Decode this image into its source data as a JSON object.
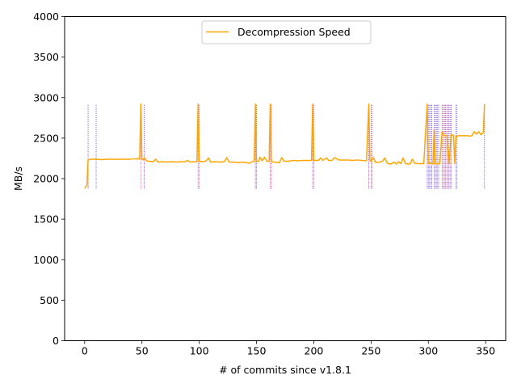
{
  "chart_data": {
    "type": "line",
    "title": "",
    "xlabel": "# of commits since v1.8.1",
    "ylabel": "MB/s",
    "xlim": [
      -17.5,
      367.5
    ],
    "ylim": [
      0,
      4000
    ],
    "xticks": [
      0,
      50,
      100,
      150,
      200,
      250,
      300,
      350
    ],
    "yticks": [
      0,
      500,
      1000,
      1500,
      2000,
      2500,
      3000,
      3500,
      4000
    ],
    "grid": false,
    "legend": "top-center",
    "colors": {
      "series": "#ffa500",
      "markers": [
        "#6a0dad",
        "#3b2fd6",
        "#c0306a"
      ]
    },
    "series": [
      {
        "name": "Decompression Speed",
        "color": "#ffa500",
        "points": [
          [
            0,
            1880
          ],
          [
            1,
            1900
          ],
          [
            2,
            1920
          ],
          [
            3,
            2230
          ],
          [
            5,
            2240
          ],
          [
            10,
            2240
          ],
          [
            15,
            2235
          ],
          [
            20,
            2240
          ],
          [
            25,
            2240
          ],
          [
            30,
            2238
          ],
          [
            35,
            2240
          ],
          [
            40,
            2240
          ],
          [
            43,
            2245
          ],
          [
            45,
            2240
          ],
          [
            47,
            2250
          ],
          [
            48,
            2240
          ],
          [
            49,
            2920
          ],
          [
            50,
            2240
          ],
          [
            51,
            2230
          ],
          [
            52,
            2260
          ],
          [
            54,
            2220
          ],
          [
            56,
            2215
          ],
          [
            60,
            2210
          ],
          [
            62,
            2240
          ],
          [
            64,
            2205
          ],
          [
            68,
            2210
          ],
          [
            72,
            2205
          ],
          [
            76,
            2210
          ],
          [
            80,
            2205
          ],
          [
            84,
            2210
          ],
          [
            88,
            2210
          ],
          [
            90,
            2225
          ],
          [
            92,
            2205
          ],
          [
            96,
            2210
          ],
          [
            98,
            2210
          ],
          [
            99,
            2920
          ],
          [
            100,
            2215
          ],
          [
            104,
            2210
          ],
          [
            106,
            2220
          ],
          [
            108,
            2255
          ],
          [
            110,
            2205
          ],
          [
            114,
            2210
          ],
          [
            118,
            2205
          ],
          [
            122,
            2210
          ],
          [
            124,
            2260
          ],
          [
            126,
            2205
          ],
          [
            130,
            2205
          ],
          [
            134,
            2200
          ],
          [
            138,
            2205
          ],
          [
            142,
            2195
          ],
          [
            144,
            2190
          ],
          [
            146,
            2210
          ],
          [
            148,
            2215
          ],
          [
            149,
            2920
          ],
          [
            150,
            2210
          ],
          [
            152,
            2215
          ],
          [
            153,
            2265
          ],
          [
            155,
            2220
          ],
          [
            157,
            2265
          ],
          [
            159,
            2215
          ],
          [
            161,
            2215
          ],
          [
            162,
            2920
          ],
          [
            163,
            2210
          ],
          [
            166,
            2205
          ],
          [
            170,
            2195
          ],
          [
            172,
            2260
          ],
          [
            174,
            2215
          ],
          [
            178,
            2215
          ],
          [
            182,
            2225
          ],
          [
            186,
            2220
          ],
          [
            190,
            2225
          ],
          [
            194,
            2225
          ],
          [
            198,
            2225
          ],
          [
            199,
            2920
          ],
          [
            200,
            2225
          ],
          [
            204,
            2225
          ],
          [
            206,
            2255
          ],
          [
            208,
            2225
          ],
          [
            211,
            2255
          ],
          [
            213,
            2225
          ],
          [
            216,
            2225
          ],
          [
            218,
            2260
          ],
          [
            220,
            2245
          ],
          [
            222,
            2230
          ],
          [
            226,
            2230
          ],
          [
            230,
            2230
          ],
          [
            234,
            2225
          ],
          [
            238,
            2230
          ],
          [
            242,
            2225
          ],
          [
            246,
            2220
          ],
          [
            248,
            2920
          ],
          [
            249,
            2220
          ],
          [
            250,
            2210
          ],
          [
            252,
            2260
          ],
          [
            254,
            2200
          ],
          [
            258,
            2205
          ],
          [
            260,
            2215
          ],
          [
            262,
            2255
          ],
          [
            264,
            2195
          ],
          [
            266,
            2180
          ],
          [
            268,
            2185
          ],
          [
            270,
            2205
          ],
          [
            272,
            2180
          ],
          [
            274,
            2210
          ],
          [
            276,
            2185
          ],
          [
            278,
            2255
          ],
          [
            280,
            2185
          ],
          [
            284,
            2180
          ],
          [
            286,
            2240
          ],
          [
            288,
            2190
          ],
          [
            292,
            2185
          ],
          [
            296,
            2185
          ],
          [
            299,
            2920
          ],
          [
            300,
            2185
          ],
          [
            302,
            2190
          ],
          [
            304,
            2180
          ],
          [
            305,
            2600
          ],
          [
            306,
            2185
          ],
          [
            308,
            2180
          ],
          [
            310,
            2185
          ],
          [
            312,
            2580
          ],
          [
            314,
            2530
          ],
          [
            316,
            2535
          ],
          [
            318,
            2180
          ],
          [
            320,
            2540
          ],
          [
            322,
            2535
          ],
          [
            323,
            2190
          ],
          [
            324,
            2520
          ],
          [
            326,
            2530
          ],
          [
            330,
            2530
          ],
          [
            334,
            2530
          ],
          [
            336,
            2525
          ],
          [
            338,
            2530
          ],
          [
            340,
            2580
          ],
          [
            342,
            2550
          ],
          [
            344,
            2580
          ],
          [
            346,
            2540
          ],
          [
            348,
            2570
          ],
          [
            349,
            2920
          ]
        ]
      }
    ],
    "event_markers": {
      "style": "dotted vertical lines",
      "y_range": [
        1870,
        2910
      ],
      "x": [
        3,
        10,
        49,
        52,
        99,
        100,
        149,
        150,
        162,
        163,
        199,
        200,
        248,
        250,
        251,
        299,
        300,
        301,
        302,
        303,
        305,
        306,
        307,
        308,
        309,
        312,
        313,
        314,
        315,
        316,
        317,
        318,
        319,
        320,
        324,
        325,
        349
      ]
    }
  }
}
